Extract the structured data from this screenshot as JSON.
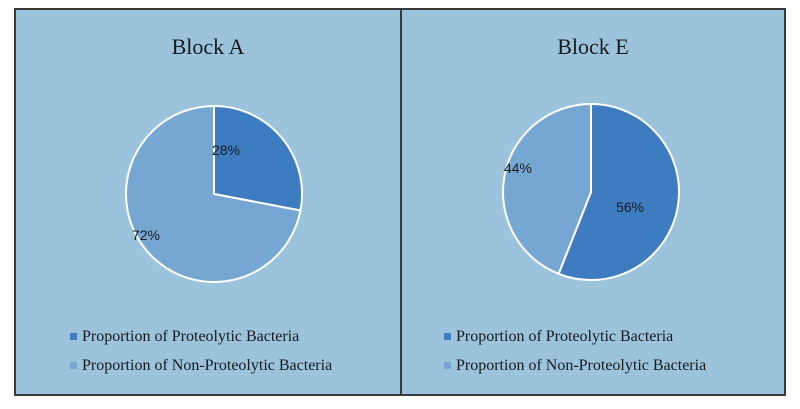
{
  "chart_data": [
    {
      "type": "pie",
      "title": "Block A",
      "slices": [
        {
          "label": "Proportion of Proteolytic Bacteria",
          "value": 28,
          "display": "28%",
          "color": "#3d7cc0"
        },
        {
          "label": "Proportion of Non-Proteolytic Bacteria",
          "value": 72,
          "display": "72%",
          "color": "#76a7d3"
        }
      ],
      "legend_position": "bottom-left"
    },
    {
      "type": "pie",
      "title": "Block E",
      "slices": [
        {
          "label": "Proportion of Proteolytic Bacteria",
          "value": 56,
          "display": "56%",
          "color": "#3d7cc0"
        },
        {
          "label": "Proportion of Non-Proteolytic Bacteria",
          "value": 44,
          "display": "44%",
          "color": "#76a7d3"
        }
      ],
      "legend_position": "bottom-left"
    }
  ]
}
